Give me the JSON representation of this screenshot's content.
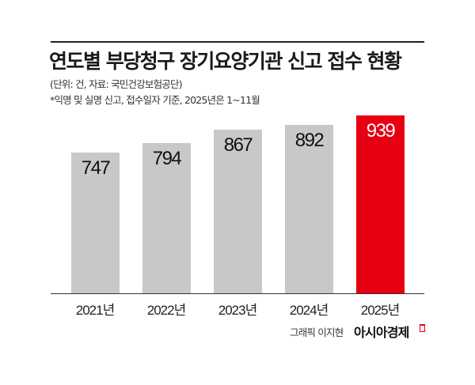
{
  "header": {
    "title": "연도별 부당청구 장기요양기관 신고 접수 현황",
    "unit_source": "(단위: 건, 자료: 국민건강보험공단)",
    "note": "*익명 및 실명 신고, 접수일자 기준, 2025년은 1~11월"
  },
  "footer": {
    "credit": "그래픽 이지현",
    "brand": "아시아경제"
  },
  "colors": {
    "bar_default": "#c8c8ca",
    "bar_highlight": "#e60012",
    "label_default": "#111111",
    "label_highlight": "#ffffff"
  },
  "chart_data": {
    "type": "bar",
    "title": "연도별 부당청구 장기요양기관 신고 접수 현황",
    "subtitle": "(단위: 건, 자료: 국민건강보험공단)",
    "annotation": "*익명 및 실명 신고, 접수일자 기준, 2025년은 1~11월",
    "categories": [
      "2021년",
      "2022년",
      "2023년",
      "2024년",
      "2025년"
    ],
    "values": [
      747,
      794,
      867,
      892,
      939
    ],
    "highlight_index": 4,
    "xlabel": "",
    "ylabel": "건",
    "grid": false,
    "legend": null,
    "data_labels": true
  }
}
